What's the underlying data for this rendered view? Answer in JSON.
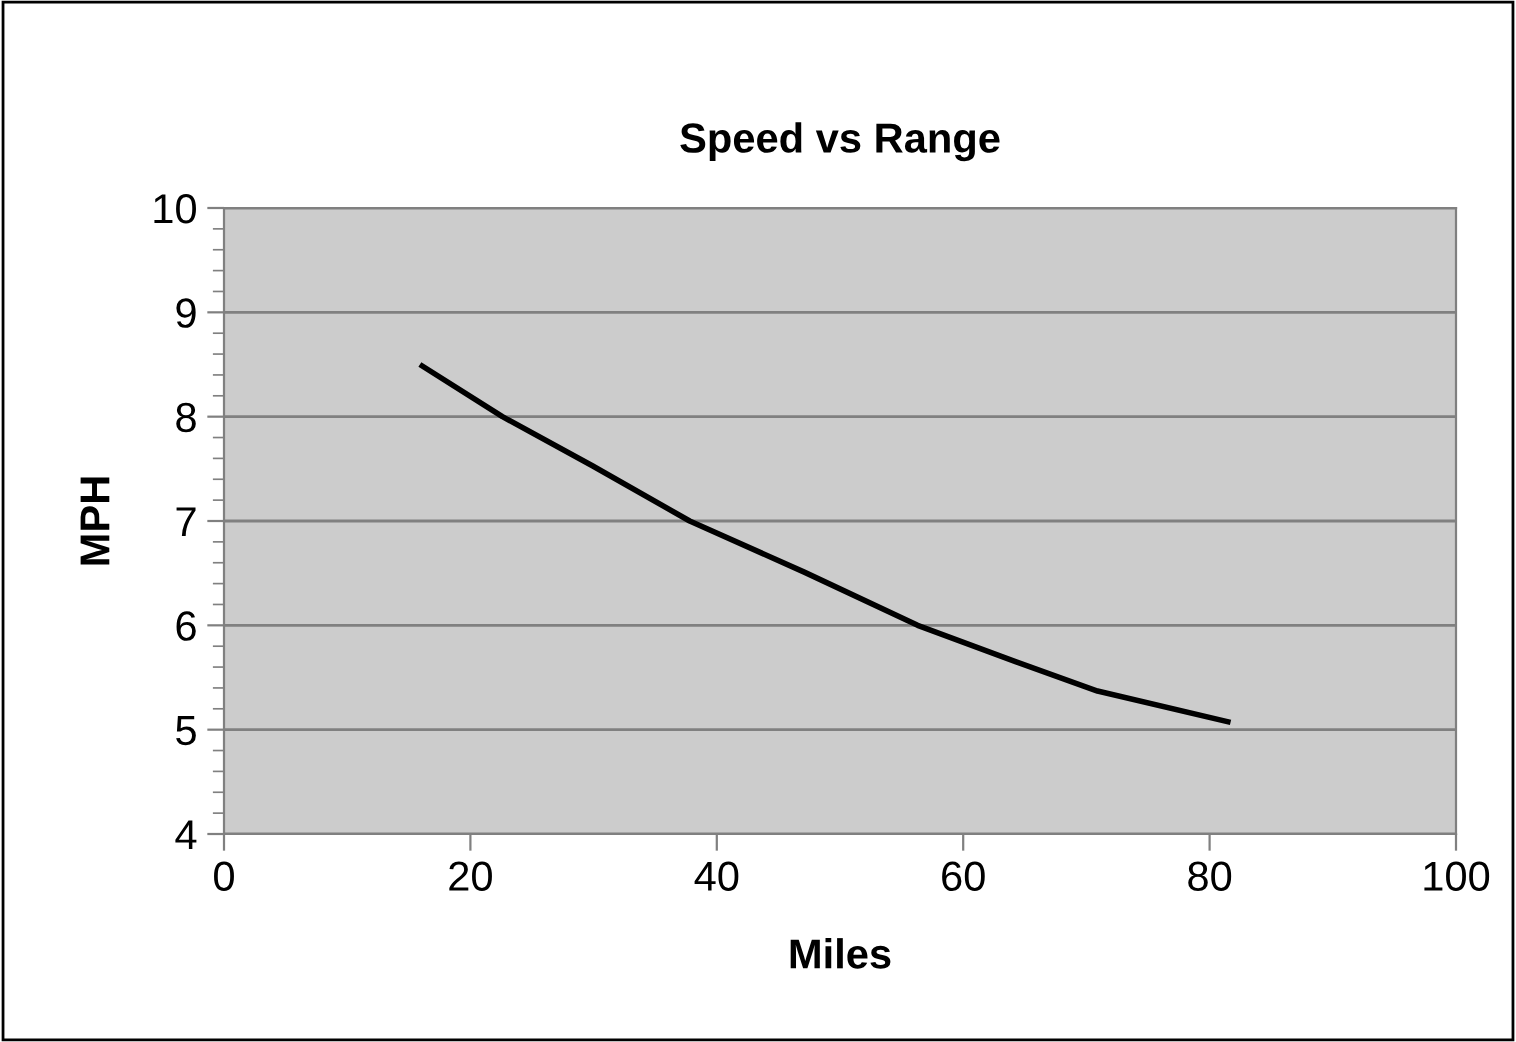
{
  "chart_data": {
    "type": "line",
    "title": "Speed vs Range",
    "xlabel": "Miles",
    "ylabel": "MPH",
    "x": [
      15.9,
      22.6,
      29.9,
      37.8,
      47.1,
      56.3,
      64.3,
      70.9,
      81.7
    ],
    "series": [
      {
        "color": "#000000",
        "values": [
          8.5,
          8.0,
          7.53,
          7.0,
          6.51,
          6.0,
          5.65,
          5.37,
          5.07
        ]
      }
    ],
    "xlim": [
      0,
      100
    ],
    "xticks": [
      0,
      20,
      40,
      60,
      80,
      100
    ],
    "ylim": [
      4,
      10
    ],
    "yticks": [
      4,
      5,
      6,
      7,
      8,
      9,
      10
    ],
    "grid": "y",
    "legend": false,
    "marker": "none",
    "line_style": "solid"
  }
}
